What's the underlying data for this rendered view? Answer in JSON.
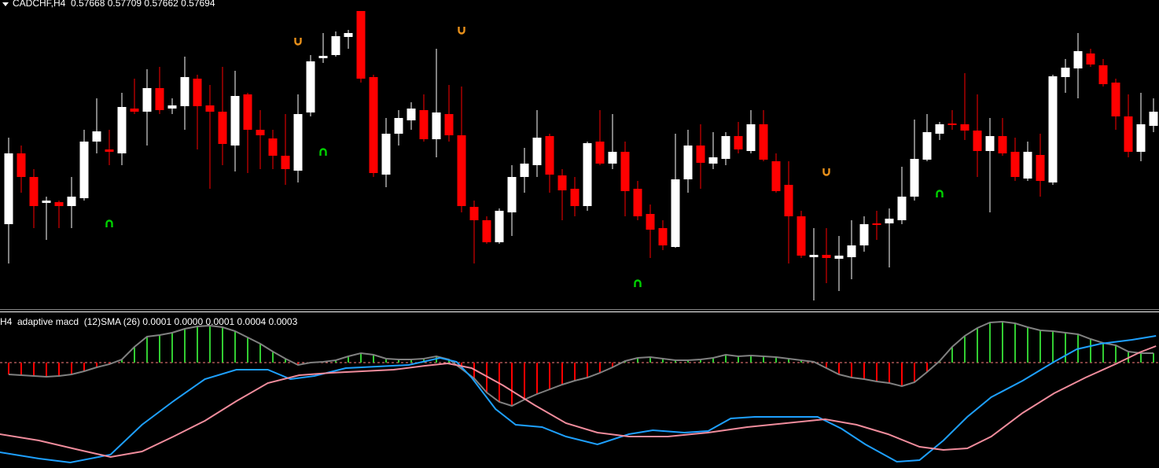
{
  "chart_data": [
    {
      "type": "candlestick",
      "title": "CADCHF,H4  0.57668 0.57709 0.57662 0.57694",
      "xlim": [
        0,
        91
      ],
      "ylim": [
        0,
        390
      ],
      "up_color": "#ffffff",
      "down_color": "#ff0000",
      "open": [
        105,
        195,
        165,
        132,
        133,
        128,
        138,
        210,
        200,
        195,
        252,
        248,
        278,
        252,
        255,
        290,
        256,
        248,
        205,
        270,
        225,
        214,
        192,
        173,
        247,
        316,
        320,
        343,
        376,
        292,
        168,
        220,
        237,
        250,
        213,
        245,
        218,
        127,
        110,
        82,
        120,
        165,
        180,
        217,
        167,
        150,
        128,
        210,
        182,
        197,
        150,
        118,
        100,
        76,
        162,
        205,
        182,
        188,
        217,
        198,
        232,
        185,
        155,
        115,
        63,
        66,
        61,
        63,
        78,
        106,
        106,
        110,
        140,
        187,
        220,
        233,
        232,
        224,
        198,
        217,
        197,
        163,
        193,
        158,
        292,
        303,
        322,
        307,
        285,
        242,
        197,
        230
      ],
      "high": [
        215,
        205,
        175,
        140,
        135,
        165,
        225,
        265,
        225,
        272,
        290,
        302,
        305,
        265,
        318,
        295,
        282,
        305,
        300,
        272,
        250,
        225,
        245,
        270,
        320,
        348,
        350,
        352,
        376,
        295,
        240,
        250,
        260,
        270,
        328,
        282,
        280,
        135,
        115,
        125,
        180,
        202,
        250,
        220,
        175,
        165,
        210,
        250,
        245,
        210,
        160,
        130,
        110,
        220,
        225,
        232,
        222,
        222,
        235,
        250,
        250,
        195,
        185,
        122,
        100,
        100,
        90,
        110,
        115,
        122,
        125,
        178,
        238,
        245,
        235,
        250,
        297,
        270,
        240,
        240,
        215,
        210,
        220,
        295,
        315,
        348,
        328,
        315,
        290,
        270,
        272,
        265
      ],
      "low": [
        55,
        145,
        100,
        85,
        100,
        100,
        135,
        195,
        180,
        180,
        245,
        205,
        245,
        245,
        225,
        200,
        150,
        180,
        172,
        170,
        175,
        175,
        155,
        158,
        242,
        310,
        318,
        328,
        285,
        165,
        152,
        205,
        225,
        210,
        190,
        210,
        120,
        55,
        80,
        80,
        90,
        145,
        165,
        145,
        110,
        115,
        122,
        180,
        175,
        115,
        110,
        62,
        72,
        75,
        145,
        150,
        175,
        180,
        195,
        195,
        185,
        145,
        55,
        62,
        8,
        30,
        20,
        35,
        70,
        85,
        50,
        105,
        135,
        185,
        212,
        225,
        212,
        165,
        120,
        192,
        160,
        160,
        140,
        155,
        272,
        265,
        305,
        280,
        225,
        190,
        185,
        222
      ],
      "close": [
        195,
        165,
        128,
        135,
        128,
        140,
        210,
        223,
        197,
        254,
        248,
        278,
        250,
        256,
        292,
        255,
        248,
        207,
        268,
        225,
        218,
        192,
        175,
        245,
        312,
        319,
        344,
        348,
        290,
        170,
        220,
        240,
        252,
        213,
        247,
        218,
        128,
        110,
        82,
        122,
        165,
        182,
        215,
        168,
        148,
        128,
        208,
        182,
        197,
        147,
        115,
        98,
        78,
        162,
        205,
        183,
        190,
        217,
        200,
        232,
        187,
        147,
        115,
        65,
        66,
        62,
        65,
        78,
        105,
        104,
        112,
        140,
        188,
        222,
        232,
        231,
        224,
        198,
        217,
        195,
        165,
        197,
        160,
        293,
        304,
        325,
        308,
        283,
        242,
        197,
        232,
        248
      ],
      "up_fractals": {
        "color": "#e8901a",
        "index": [
          23,
          36,
          65
        ],
        "values": [
          338,
          352,
          172
        ]
      },
      "down_fractals": {
        "color": "#00d000",
        "index": [
          8,
          25,
          50,
          74
        ],
        "values": [
          105,
          196,
          29,
          143
        ]
      }
    },
    {
      "type": "macd",
      "title": "H4  adaptive macd  (12)SMA (26) 0.0001 0.0000 0.0001 0.0004 0.0003",
      "xlim": [
        0,
        91
      ],
      "ylim": [
        -134,
        63
      ],
      "levels": [
        0
      ],
      "histogram": {
        "up_color": "#32cd32",
        "down_color": "#ff0000",
        "outline_color": "#808080",
        "values": [
          -15,
          -16,
          -17,
          -18,
          -17,
          -15,
          -11,
          -6,
          -2,
          4,
          20,
          33,
          35,
          38,
          43,
          46,
          47,
          45,
          40,
          32,
          24,
          14,
          5,
          -3,
          0,
          1,
          3,
          8,
          12,
          10,
          5,
          4,
          4,
          5,
          8,
          4,
          -8,
          -20,
          -38,
          -50,
          -55,
          -47,
          -40,
          -34,
          -28,
          -23,
          -19,
          -13,
          -6,
          2,
          6,
          7,
          5,
          3,
          3,
          4,
          6,
          10,
          8,
          9,
          8,
          7,
          5,
          3,
          1,
          -7,
          -15,
          -19,
          -21,
          -24,
          -26,
          -30,
          -25,
          -12,
          2,
          20,
          34,
          44,
          51,
          52,
          50,
          45,
          41,
          40,
          38,
          36,
          30,
          25,
          22,
          14,
          12,
          12
        ]
      },
      "series": [
        {
          "color": "#1ea0ff",
          "x": [
            -0.7,
            2.4,
            4.9,
            8.1,
            10.6,
            13.1,
            15.6,
            18.1,
            20.6,
            22.4,
            24.3,
            26.8,
            29.3,
            31.8,
            34.3,
            35.6,
            36.8,
            38.7,
            40.3,
            42.4,
            44.3,
            46.8,
            49.3,
            51.2,
            53.7,
            55.6,
            57.4,
            59.3,
            61.8,
            64.3,
            66.2,
            68.1,
            70.6,
            72.4,
            74.3,
            76.2,
            78.1,
            80.6,
            83.1,
            84.9,
            86.8,
            89.3,
            91.2
          ],
          "values": [
            -114,
            -122,
            -127,
            -117,
            -79,
            -49,
            -21,
            -9,
            -9,
            -21,
            -17,
            -7,
            -5,
            -3,
            6,
            1,
            -19,
            -59,
            -79,
            -82,
            -94,
            -104,
            -91,
            -86,
            -89,
            -87,
            -71,
            -69,
            -69,
            -69,
            -84,
            -104,
            -126,
            -124,
            -99,
            -69,
            -44,
            -23,
            1,
            17,
            24,
            29,
            34
          ]
        },
        {
          "color": "#f08c9c",
          "x": [
            -0.7,
            2.4,
            5.6,
            8.1,
            10.6,
            13.1,
            15.6,
            18.1,
            20.6,
            23.1,
            25.6,
            28.1,
            30.6,
            33.1,
            34.9,
            36.8,
            39.3,
            41.8,
            44.3,
            46.8,
            49.3,
            52.4,
            55.6,
            58.7,
            61.8,
            64.9,
            67.4,
            69.9,
            72.4,
            74.3,
            76.2,
            78.1,
            80.6,
            83.1,
            85.6,
            88.1,
            89.9,
            91.2
          ],
          "values": [
            -91,
            -99,
            -111,
            -120,
            -113,
            -94,
            -74,
            -49,
            -26,
            -16,
            -13,
            -11,
            -9,
            -4,
            -1,
            -7,
            -29,
            -54,
            -77,
            -89,
            -94,
            -94,
            -89,
            -82,
            -77,
            -72,
            -79,
            -91,
            -107,
            -111,
            -109,
            -94,
            -64,
            -39,
            -19,
            -1,
            13,
            21
          ]
        }
      ]
    }
  ]
}
